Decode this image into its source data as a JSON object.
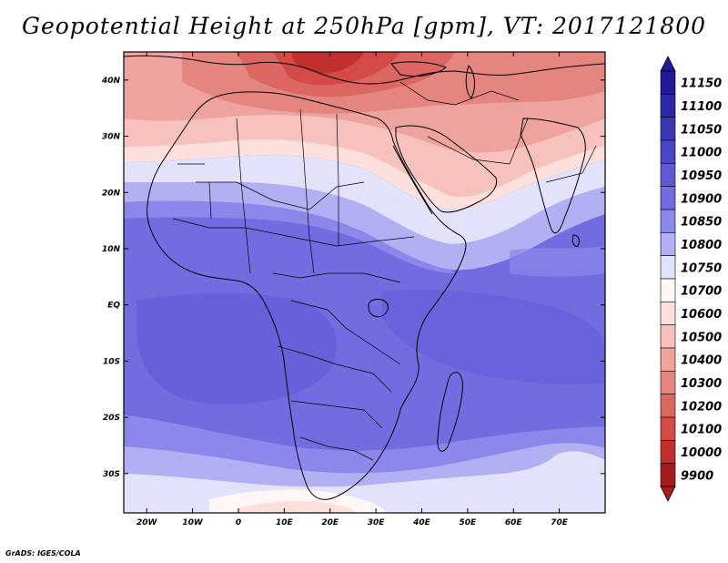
{
  "map": {
    "title": "Geopotential Height at 250hPa [gpm], VT: 2017121800",
    "variable": "Geopotential Height",
    "level": "250hPa",
    "units": "gpm",
    "valid_time": "2017121800",
    "region": {
      "lon_min": -25,
      "lon_max": 80,
      "lat_min": -37,
      "lat_max": 45
    },
    "lon_ticks": [
      {
        "lon": -20,
        "label": "20W"
      },
      {
        "lon": -10,
        "label": "10W"
      },
      {
        "lon": 0,
        "label": "0"
      },
      {
        "lon": 10,
        "label": "10E"
      },
      {
        "lon": 20,
        "label": "20E"
      },
      {
        "lon": 30,
        "label": "30E"
      },
      {
        "lon": 40,
        "label": "40E"
      },
      {
        "lon": 50,
        "label": "50E"
      },
      {
        "lon": 60,
        "label": "60E"
      },
      {
        "lon": 70,
        "label": "70E"
      }
    ],
    "lat_ticks": [
      {
        "lat": 40,
        "label": "40N"
      },
      {
        "lat": 30,
        "label": "30N"
      },
      {
        "lat": 20,
        "label": "20N"
      },
      {
        "lat": 10,
        "label": "10N"
      },
      {
        "lat": 0,
        "label": "EQ"
      },
      {
        "lat": -10,
        "label": "10S"
      },
      {
        "lat": -20,
        "label": "20S"
      },
      {
        "lat": -30,
        "label": "30S"
      }
    ]
  },
  "colorbar": {
    "levels": [
      {
        "value": "11150",
        "color": "#1f1b99"
      },
      {
        "value": "11100",
        "color": "#2b27a8"
      },
      {
        "value": "11050",
        "color": "#3a36b7"
      },
      {
        "value": "11000",
        "color": "#4a45c4"
      },
      {
        "value": "10950",
        "color": "#5f5ad3"
      },
      {
        "value": "10900",
        "color": "#716ce0"
      },
      {
        "value": "10850",
        "color": "#8c87ea"
      },
      {
        "value": "10800",
        "color": "#b2aff3"
      },
      {
        "value": "10750",
        "color": "#e3e2fb"
      },
      {
        "value": "10700",
        "color": "#fff7f5"
      },
      {
        "value": "10600",
        "color": "#fde0dc"
      },
      {
        "value": "10500",
        "color": "#f7c2bd"
      },
      {
        "value": "10400",
        "color": "#eea39e"
      },
      {
        "value": "10300",
        "color": "#e58580"
      },
      {
        "value": "10200",
        "color": "#dc6762"
      },
      {
        "value": "10100",
        "color": "#d34a46"
      },
      {
        "value": "10000",
        "color": "#c2302d"
      },
      {
        "value": "9900",
        "color": "#a61c1a"
      }
    ]
  },
  "credit": "GrADS: IGES/COLA"
}
